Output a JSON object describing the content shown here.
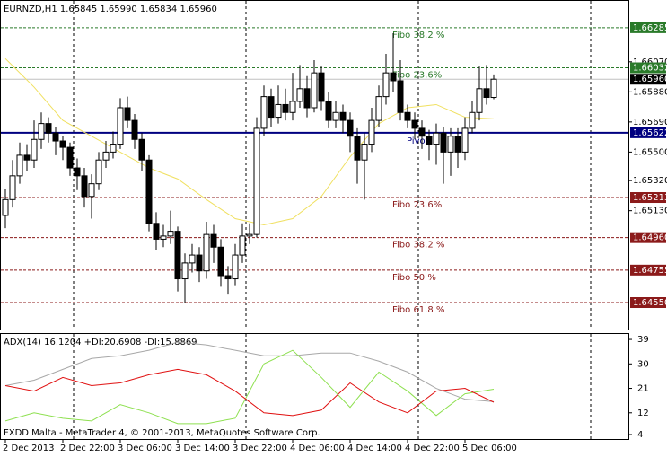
{
  "chart_data": [
    {
      "type": "candlestick",
      "title": "EURNZD,H1  1.65845 1.65990 1.65834 1.65960",
      "categories": [
        "2 Dec 2013",
        null,
        null,
        null,
        null,
        null,
        null,
        null,
        "2 Dec 22:00",
        null,
        null,
        null,
        null,
        null,
        null,
        null,
        "3 Dec 06:00",
        null,
        null,
        null,
        null,
        null,
        null,
        null,
        "3 Dec 14:00",
        null,
        null,
        null,
        null,
        null,
        null,
        null,
        "3 Dec 22:00",
        null,
        null,
        null,
        null,
        null,
        null,
        null,
        "4 Dec 06:00",
        null,
        null,
        null,
        null,
        null,
        null,
        null,
        "4 Dec 14:00",
        null,
        null,
        null,
        null,
        null,
        null,
        null,
        "4 Dec 22:00",
        null,
        null,
        null,
        null,
        null,
        null,
        null,
        "5 Dec 06:00",
        null,
        null,
        null,
        null
      ],
      "open": [
        1.651,
        1.652,
        1.6535,
        1.6548,
        1.6545,
        1.6558,
        1.6568,
        1.6562,
        1.6557,
        1.6553,
        1.654,
        1.6535,
        1.6522,
        1.653,
        1.6545,
        1.655,
        1.6555,
        1.6578,
        1.657,
        1.6558,
        1.6545,
        1.6505,
        1.6495,
        1.6497,
        1.65,
        1.647,
        1.648,
        1.6485,
        1.6475,
        1.6498,
        1.649,
        1.6472,
        1.647,
        1.6485,
        1.6497,
        1.6498,
        1.6565,
        1.6585,
        1.6572,
        1.658,
        1.6575,
        1.6582,
        1.659,
        1.6578,
        1.66,
        1.6582,
        1.657,
        1.6575,
        1.657,
        1.656,
        1.6545,
        1.6555,
        1.657,
        1.6585,
        1.66,
        1.6595,
        1.6575,
        1.657,
        1.6565,
        1.656,
        1.6555,
        1.6562,
        1.655,
        1.656,
        1.655,
        1.6565,
        1.6575,
        1.659,
        1.65845
      ],
      "high": [
        1.6527,
        1.6545,
        1.6556,
        1.6555,
        1.657,
        1.6575,
        1.6572,
        1.6566,
        1.656,
        1.6556,
        1.6546,
        1.654,
        1.6536,
        1.655,
        1.6557,
        1.6563,
        1.6584,
        1.6585,
        1.6574,
        1.6562,
        1.6548,
        1.6512,
        1.6504,
        1.6513,
        1.6503,
        1.6486,
        1.6492,
        1.649,
        1.6506,
        1.6504,
        1.6495,
        1.6478,
        1.6492,
        1.6505,
        1.6505,
        1.6572,
        1.6592,
        1.659,
        1.6592,
        1.659,
        1.66,
        1.6605,
        1.6598,
        1.6608,
        1.6604,
        1.6588,
        1.6582,
        1.658,
        1.6575,
        1.6565,
        1.6562,
        1.6578,
        1.6592,
        1.6612,
        1.6625,
        1.6608,
        1.658,
        1.6575,
        1.657,
        1.6564,
        1.6568,
        1.6566,
        1.6565,
        1.6565,
        1.6572,
        1.6582,
        1.6604,
        1.6605,
        1.6599
      ],
      "low": [
        1.6502,
        1.6515,
        1.653,
        1.6538,
        1.654,
        1.6552,
        1.6556,
        1.6548,
        1.6545,
        1.6535,
        1.6526,
        1.6515,
        1.6508,
        1.6526,
        1.654,
        1.6546,
        1.6552,
        1.6565,
        1.6552,
        1.6538,
        1.65,
        1.6488,
        1.649,
        1.6492,
        1.6462,
        1.6455,
        1.6474,
        1.6468,
        1.647,
        1.648,
        1.6465,
        1.646,
        1.6466,
        1.648,
        1.6492,
        1.6496,
        1.656,
        1.6566,
        1.6568,
        1.657,
        1.657,
        1.6578,
        1.6572,
        1.6575,
        1.6576,
        1.6565,
        1.6565,
        1.6562,
        1.655,
        1.653,
        1.652,
        1.655,
        1.6566,
        1.658,
        1.6588,
        1.657,
        1.6565,
        1.6558,
        1.6552,
        1.6545,
        1.6542,
        1.653,
        1.6535,
        1.654,
        1.6545,
        1.6562,
        1.657,
        1.658,
        1.65834
      ],
      "close": [
        1.652,
        1.6535,
        1.6548,
        1.6545,
        1.6558,
        1.6568,
        1.6562,
        1.6557,
        1.6553,
        1.654,
        1.6535,
        1.6522,
        1.653,
        1.6545,
        1.655,
        1.6555,
        1.6578,
        1.657,
        1.6558,
        1.6545,
        1.6505,
        1.6495,
        1.6497,
        1.65,
        1.647,
        1.648,
        1.6485,
        1.6475,
        1.6498,
        1.649,
        1.6472,
        1.647,
        1.6485,
        1.6497,
        1.6498,
        1.6565,
        1.6585,
        1.6572,
        1.658,
        1.6575,
        1.6582,
        1.659,
        1.6578,
        1.66,
        1.6582,
        1.657,
        1.6575,
        1.657,
        1.656,
        1.6545,
        1.6555,
        1.657,
        1.6585,
        1.66,
        1.6595,
        1.6575,
        1.657,
        1.6565,
        1.656,
        1.6555,
        1.6562,
        1.655,
        1.656,
        1.655,
        1.6565,
        1.6575,
        1.659,
        1.65845,
        1.6596
      ],
      "ma": {
        "color": "#f0e060",
        "x": [
          0,
          4,
          8,
          12,
          16,
          20,
          24,
          28,
          32,
          36,
          40,
          44,
          48,
          52,
          56,
          60,
          64,
          68
        ],
        "values": [
          1.6609,
          1.6591,
          1.657,
          1.656,
          1.655,
          1.654,
          1.6533,
          1.652,
          1.6508,
          1.6504,
          1.6508,
          1.6522,
          1.6547,
          1.6568,
          1.6578,
          1.658,
          1.6572,
          1.6571
        ]
      },
      "levels": [
        {
          "text": "Fibo 38.2 %",
          "value": 1.66285,
          "value_label": "1.66285",
          "color": "#2a7a2a"
        },
        {
          "text": "Fibo 23.6%",
          "value": 1.66032,
          "value_label": "1.66032",
          "color": "#2a7a2a"
        },
        {
          "text": "Pivot",
          "value": 1.65622,
          "value_label": "1.65622",
          "color": "#000080"
        },
        {
          "text": "Fibo 23.6%",
          "value": 1.65213,
          "value_label": "1.65213",
          "color": "#8b1a1a"
        },
        {
          "text": "Fibo 38.2 %",
          "value": 1.6496,
          "value_label": "1.64960",
          "color": "#8b1a1a"
        },
        {
          "text": "Fibo 50 %",
          "value": 1.64755,
          "value_label": "1.64755",
          "color": "#8b1a1a"
        },
        {
          "text": "Fibo 61.8 %",
          "value": 1.6455,
          "value_label": "1.64550",
          "color": "#8b1a1a"
        }
      ],
      "last_price": {
        "value": 1.6596,
        "label": "1.65960",
        "color": "#000000"
      },
      "ylim": [
        1.6438,
        1.6646
      ],
      "yticks": [
        {
          "value": 1.6607,
          "label": "1.66070"
        },
        {
          "value": 1.6588,
          "label": "1.65880"
        },
        {
          "value": 1.6569,
          "label": "1.65690"
        },
        {
          "value": 1.655,
          "label": "1.65500"
        },
        {
          "value": 1.6532,
          "label": "1.65320"
        },
        {
          "value": 1.6513,
          "label": "1.65130"
        }
      ]
    },
    {
      "type": "line",
      "title": "ADX(14) 16.1204 +DI:20.6908 -DI:15.8869",
      "x": [
        0,
        4,
        8,
        12,
        16,
        20,
        24,
        28,
        32,
        36,
        40,
        44,
        48,
        52,
        56,
        60,
        64,
        68
      ],
      "series": [
        {
          "color": "#a8a8a8",
          "values": [
            22,
            24,
            28,
            32,
            33,
            35,
            38,
            37,
            35,
            33,
            33,
            34,
            34,
            31,
            27,
            21,
            17,
            16.12
          ]
        },
        {
          "color": "#8ee050",
          "values": [
            9,
            12,
            10,
            9,
            15,
            12,
            8,
            8,
            10,
            30,
            35,
            25,
            14,
            27,
            20,
            11,
            19,
            20.69
          ]
        },
        {
          "color": "#e01010",
          "values": [
            22,
            20,
            25,
            22,
            23,
            26,
            28,
            26,
            20,
            12,
            11,
            13,
            23,
            16,
            12,
            20,
            21,
            15.89
          ]
        }
      ],
      "ylim": [
        2.35,
        41
      ],
      "yticks": [
        39,
        30,
        21,
        12,
        4
      ]
    }
  ],
  "footer": "FXDD Malta - MetaTrader 4, © 2001-2013, MetaQuotes Software Corp."
}
